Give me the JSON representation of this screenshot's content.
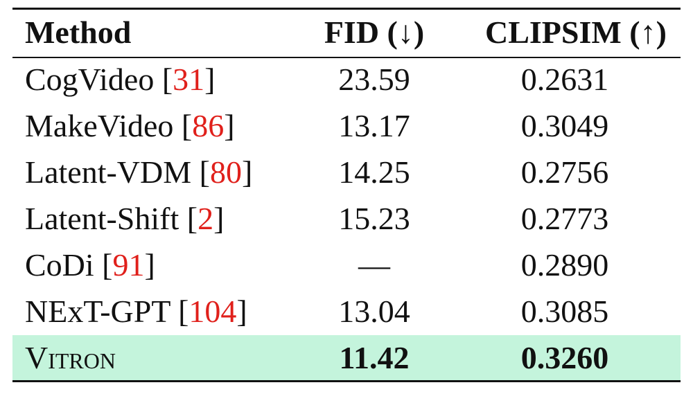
{
  "table": {
    "header": [
      "Method",
      "FID (↓)",
      "CLIPSIM (↑)"
    ],
    "rows": [
      {
        "method": [
          "CogVideo [",
          "31",
          "]"
        ],
        "fid": "23.59",
        "clipsim": "0.2631"
      },
      {
        "method": [
          "MakeVideo [",
          "86",
          "]"
        ],
        "fid": "13.17",
        "clipsim": "0.3049"
      },
      {
        "method": [
          "Latent-VDM [",
          "80",
          "]"
        ],
        "fid": "14.25",
        "clipsim": "0.2756"
      },
      {
        "method": [
          "Latent-Shift [",
          "2",
          "]"
        ],
        "fid": "15.23",
        "clipsim": "0.2773"
      },
      {
        "method": [
          "CoDi [",
          "91",
          "]"
        ],
        "fid": "—",
        "clipsim": "0.2890"
      },
      {
        "method": [
          "NExT-GPT [",
          "104",
          "]"
        ],
        "fid": "13.04",
        "clipsim": "0.3085"
      }
    ],
    "highlight": {
      "method": "Vitron",
      "fid": "11.42",
      "clipsim": "0.3260"
    }
  }
}
